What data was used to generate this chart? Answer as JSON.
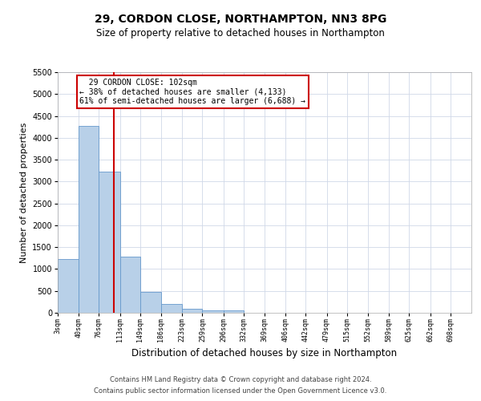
{
  "title": "29, CORDON CLOSE, NORTHAMPTON, NN3 8PG",
  "subtitle": "Size of property relative to detached houses in Northampton",
  "xlabel": "Distribution of detached houses by size in Northampton",
  "ylabel": "Number of detached properties",
  "footer_line1": "Contains HM Land Registry data © Crown copyright and database right 2024.",
  "footer_line2": "Contains public sector information licensed under the Open Government Licence v3.0.",
  "annotation_line1": "29 CORDON CLOSE: 102sqm",
  "annotation_line2": "← 38% of detached houses are smaller (4,133)",
  "annotation_line3": "61% of semi-detached houses are larger (6,688) →",
  "property_size_sqm": 102,
  "bar_color": "#b8d0e8",
  "bar_edge_color": "#6699cc",
  "vline_color": "#cc0000",
  "annotation_box_edge_color": "#cc0000",
  "ylim": [
    0,
    5500
  ],
  "yticks": [
    0,
    500,
    1000,
    1500,
    2000,
    2500,
    3000,
    3500,
    4000,
    4500,
    5000,
    5500
  ],
  "bin_edges": [
    3,
    40,
    76,
    113,
    149,
    186,
    223,
    259,
    296,
    332,
    369,
    406,
    442,
    479,
    515,
    552,
    589,
    625,
    662,
    698,
    735
  ],
  "bar_heights": [
    1230,
    4280,
    3230,
    1290,
    480,
    200,
    100,
    60,
    60,
    0,
    0,
    0,
    0,
    0,
    0,
    0,
    0,
    0,
    0,
    0
  ],
  "grid_color": "#d0d8e8",
  "background_color": "#ffffff",
  "title_fontsize": 10,
  "subtitle_fontsize": 8.5,
  "ylabel_fontsize": 8,
  "xlabel_fontsize": 8.5,
  "xtick_fontsize": 6,
  "ytick_fontsize": 7,
  "annotation_fontsize": 7,
  "footer_fontsize": 6
}
